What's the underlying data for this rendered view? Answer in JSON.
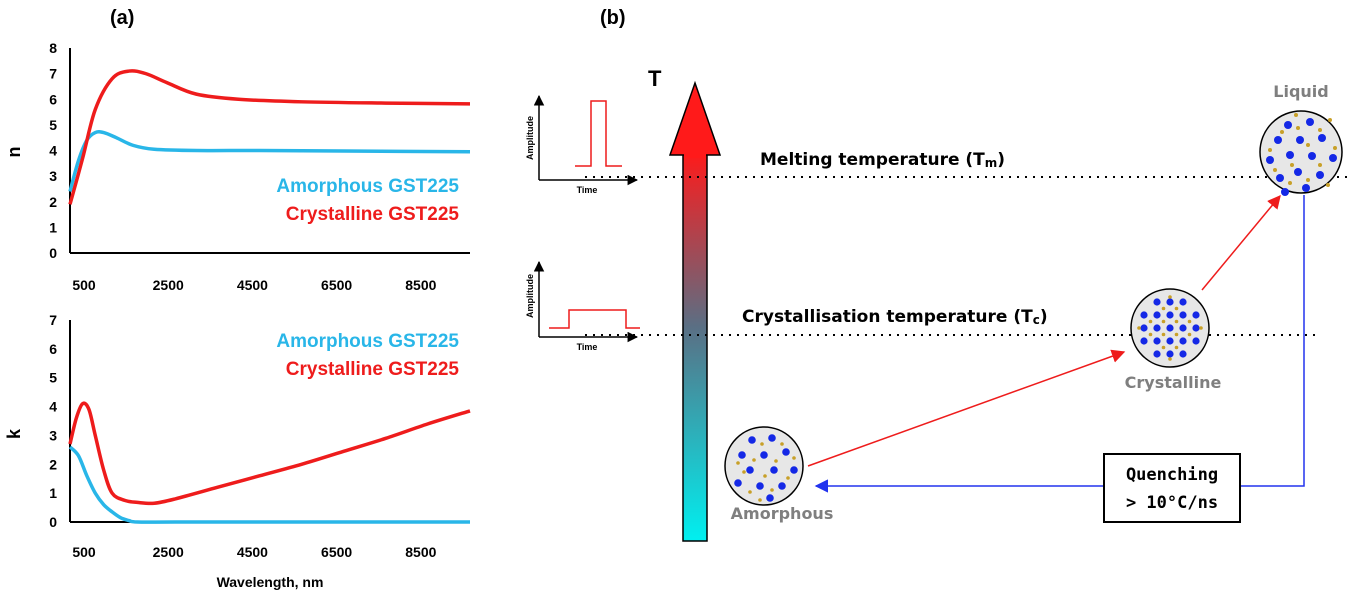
{
  "panel_a_label": "(a)",
  "panel_b_label": "(b)",
  "colors": {
    "amorphous": "#29b6e8",
    "crystalline": "#ee1c1c",
    "quench_arrow": "#2233ee",
    "heat_arrow": "#ee1c1c"
  },
  "chart_data": [
    {
      "type": "line",
      "ylabel": "n",
      "xlim": [
        500,
        10000
      ],
      "ylim": [
        0,
        8
      ],
      "xticks": [
        "500",
        "2500",
        "4500",
        "6500",
        "8500"
      ],
      "yticks": [
        "0",
        "1",
        "2",
        "3",
        "4",
        "5",
        "6",
        "7",
        "8"
      ],
      "legend_position": "bottom-right",
      "series": [
        {
          "name": "Amorphous GST225",
          "color": "#29b6e8",
          "x": [
            500,
            700,
            900,
            1100,
            1300,
            1600,
            2000,
            2500,
            3500,
            5000,
            7000,
            10000
          ],
          "y": [
            2.4,
            3.6,
            4.4,
            4.7,
            4.7,
            4.5,
            4.2,
            4.05,
            4.0,
            4.0,
            3.98,
            3.95
          ]
        },
        {
          "name": "Crystalline GST225",
          "color": "#ee1c1c",
          "x": [
            500,
            800,
            1100,
            1500,
            1900,
            2300,
            2800,
            3500,
            4500,
            6000,
            8000,
            10000
          ],
          "y": [
            1.9,
            3.7,
            5.6,
            6.8,
            7.1,
            7.0,
            6.65,
            6.2,
            6.0,
            5.9,
            5.85,
            5.82
          ]
        }
      ]
    },
    {
      "type": "line",
      "ylabel": "k",
      "xlabel": "Wavelength, nm",
      "xlim": [
        500,
        10000
      ],
      "ylim": [
        0,
        7
      ],
      "xticks": [
        "500",
        "2500",
        "4500",
        "6500",
        "8500"
      ],
      "yticks": [
        "0",
        "1",
        "2",
        "3",
        "4",
        "5",
        "6",
        "7"
      ],
      "legend_position": "top-right",
      "series": [
        {
          "name": "Amorphous GST225",
          "color": "#29b6e8",
          "x": [
            500,
            700,
            900,
            1100,
            1300,
            1500,
            1700,
            1900,
            2100,
            3000,
            5000,
            10000
          ],
          "y": [
            2.6,
            2.3,
            1.6,
            1.0,
            0.6,
            0.35,
            0.15,
            0.05,
            0.0,
            0.0,
            0.0,
            0.0
          ]
        },
        {
          "name": "Crystalline GST225",
          "color": "#ee1c1c",
          "x": [
            500,
            650,
            800,
            950,
            1100,
            1300,
            1500,
            1800,
            2100,
            2500,
            3000,
            4000,
            5000,
            6000,
            7000,
            8000,
            9000,
            10000
          ],
          "y": [
            2.7,
            3.6,
            4.1,
            3.9,
            3.0,
            1.8,
            1.0,
            0.75,
            0.68,
            0.65,
            0.8,
            1.2,
            1.6,
            2.0,
            2.45,
            2.9,
            3.4,
            3.85
          ]
        }
      ]
    }
  ],
  "diagram": {
    "axis_label": "T",
    "melting_label": "Melting temperature (T",
    "melting_sub": "m",
    "crystallisation_label": "Crystallisation temperature (T",
    "crystallisation_sub": "c",
    "close_paren": ")",
    "amplitude_label": "Amplitude",
    "time_label": "Time",
    "states": {
      "liquid": "Liquid",
      "crystalline": "Crystalline",
      "amorphous": "Amorphous"
    },
    "quench_line1": "Quenching",
    "quench_line2": "> 10°C/ns"
  }
}
